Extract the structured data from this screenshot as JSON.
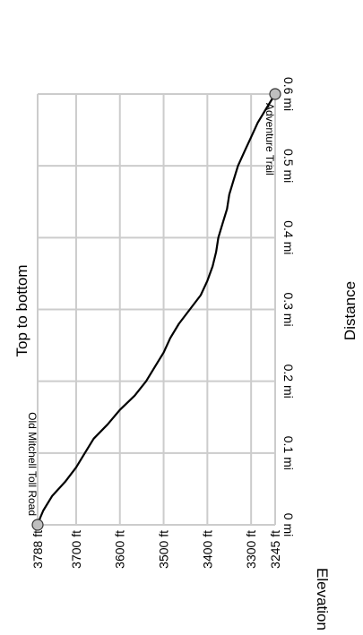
{
  "chart_data": {
    "type": "line",
    "title": "Top to bottom",
    "xlabel": "Distance",
    "ylabel": "Elevation",
    "x_ticks": [
      "0 mi",
      "0.1 mi",
      "0.2 mi",
      "0.3 mi",
      "0.4 mi",
      "0.5 mi",
      "0.6 mi"
    ],
    "y_ticks": [
      "3788 ft",
      "3700 ft",
      "3600 ft",
      "3500 ft",
      "3400 ft",
      "3300 ft",
      "3245 ft"
    ],
    "xlim": [
      0,
      0.6
    ],
    "ylim": [
      3245,
      3788
    ],
    "grid": true,
    "series": [
      {
        "x": [
          0,
          0.01,
          0.02,
          0.04,
          0.06,
          0.08,
          0.1,
          0.12,
          0.14,
          0.16,
          0.18,
          0.2,
          0.22,
          0.24,
          0.26,
          0.28,
          0.3,
          0.32,
          0.34,
          0.36,
          0.38,
          0.4,
          0.42,
          0.44,
          0.46,
          0.48,
          0.5,
          0.52,
          0.54,
          0.56,
          0.58,
          0.6
        ],
        "y": [
          3788,
          3782,
          3775,
          3755,
          3725,
          3700,
          3680,
          3660,
          3628,
          3600,
          3566,
          3540,
          3520,
          3500,
          3485,
          3465,
          3440,
          3415,
          3400,
          3388,
          3380,
          3375,
          3365,
          3355,
          3350,
          3340,
          3330,
          3315,
          3300,
          3285,
          3265,
          3245
        ]
      }
    ],
    "annotations": [
      {
        "label": "Old Mitchell Toll Road",
        "x": 0,
        "y": 3788
      },
      {
        "label": "Adventure Trail",
        "x": 0.6,
        "y": 3245
      }
    ]
  }
}
